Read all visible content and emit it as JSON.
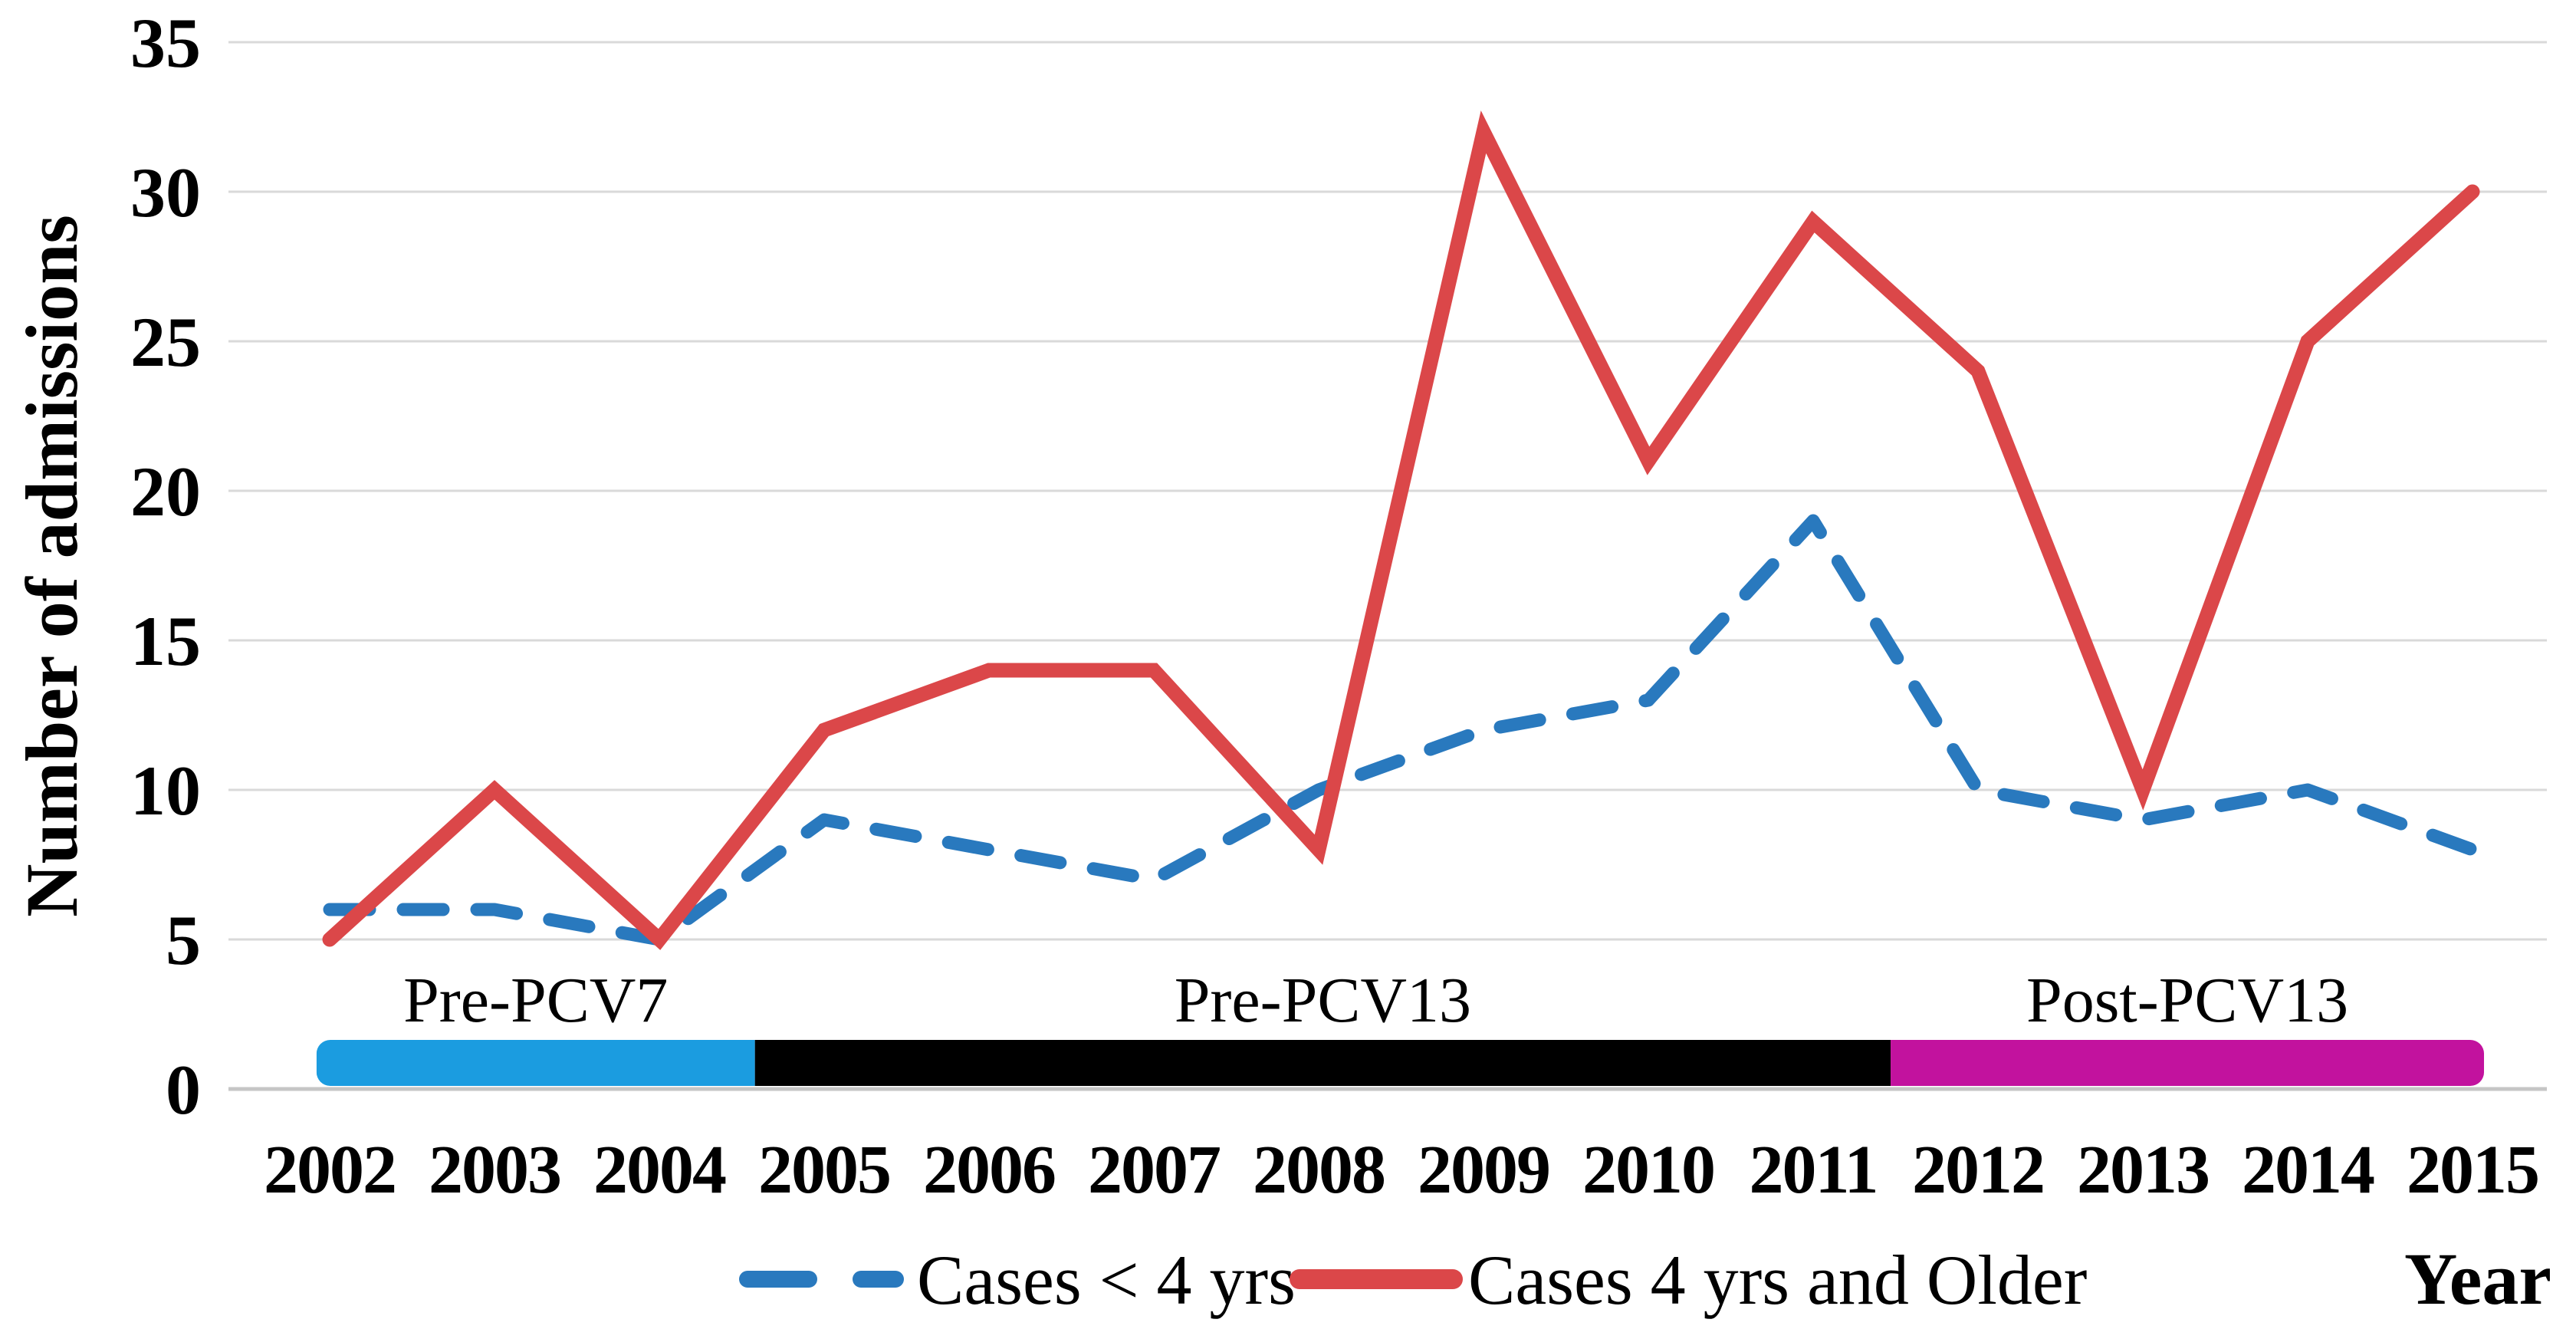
{
  "figure": {
    "y_axis_title": "Number of admissions",
    "x_axis_title": "Year",
    "background_color": "#ffffff",
    "gridline_color": "#d9d9d9",
    "axisline_color": "#c6c6c6",
    "text_color": "#000000"
  },
  "chart_data": {
    "type": "line",
    "title": "",
    "xlabel": "Year",
    "ylabel": "Number of admissions",
    "x": [
      2002,
      2003,
      2004,
      2005,
      2006,
      2007,
      2008,
      2009,
      2010,
      2011,
      2012,
      2013,
      2014,
      2015
    ],
    "series": [
      {
        "name": "Cases < 4 yrs",
        "style": "dashed",
        "color": "#2979be",
        "values": [
          6,
          6,
          5,
          9,
          8,
          7,
          10,
          12,
          13,
          19,
          10,
          9,
          10,
          8
        ]
      },
      {
        "name": "Cases 4 yrs and Older",
        "style": "solid",
        "color": "#db4749",
        "values": [
          5,
          10,
          5,
          12,
          14,
          14,
          8,
          32,
          21,
          29,
          24,
          10,
          25,
          30
        ]
      }
    ],
    "ylim": [
      0,
      35
    ],
    "yticks": [
      0,
      5,
      10,
      15,
      20,
      25,
      30,
      35
    ],
    "grid": true,
    "legend_position": "bottom",
    "periods": [
      {
        "label": "Pre-PCV7",
        "color": "#1b9ce0",
        "from_year": 2001.92,
        "to_year": 2004.58
      },
      {
        "label": "Pre-PCV13",
        "color": "#000000",
        "from_year": 2004.58,
        "to_year": 2011.47
      },
      {
        "label": "Post-PCV13",
        "color": "#c2129e",
        "from_year": 2011.47,
        "to_year": 2015.07
      }
    ]
  }
}
